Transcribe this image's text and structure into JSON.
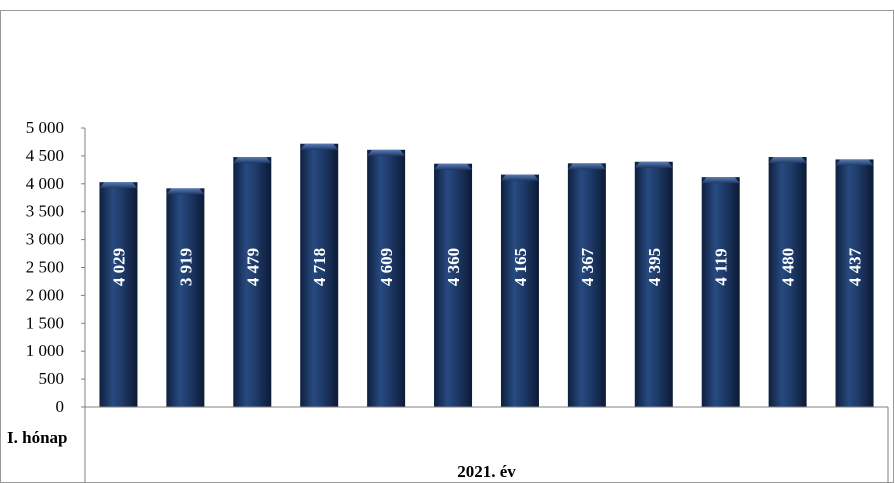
{
  "chart_data": {
    "type": "bar",
    "categories": [
      "I. hónap",
      "",
      "",
      "",
      "",
      "",
      "",
      "",
      "",
      "",
      "",
      ""
    ],
    "group_label": "2021. év",
    "values": [
      4029,
      3919,
      4479,
      4718,
      4609,
      4360,
      4165,
      4367,
      4395,
      4119,
      4480,
      4437
    ],
    "value_labels": [
      "4 029",
      "3 919",
      "4 479",
      "4 718",
      "4 609",
      "4 360",
      "4 165",
      "4 367",
      "4 395",
      "4 119",
      "4 480",
      "4 437"
    ],
    "yticks": [
      "0",
      "500",
      "1 000",
      "1 500",
      "2 000",
      "2 500",
      "3 000",
      "3 500",
      "4 000",
      "4 500",
      "5 000"
    ],
    "ylim": [
      0,
      5000
    ],
    "bar_color": "#1f3864",
    "title": "",
    "xlabel": "",
    "ylabel": ""
  }
}
